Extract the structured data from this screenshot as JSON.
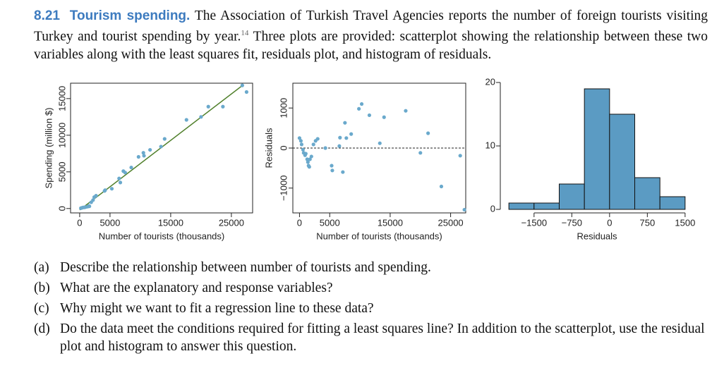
{
  "exercise": {
    "number": "8.21",
    "title": "Tourism spending.",
    "text_before": "The Association of Turkish Travel Agencies reports the number of foreign tourists visiting Turkey and tourist spending by year.",
    "footnote": "14",
    "text_after": "Three plots are provided: scatterplot showing the relationship between these two variables along with the least squares fit, residuals plot, and histogram of residuals."
  },
  "questions": [
    {
      "label": "(a)",
      "text": "Describe the relationship between number of tourists and spending."
    },
    {
      "label": "(b)",
      "text": "What are the explanatory and response variables?"
    },
    {
      "label": "(c)",
      "text": "Why might we want to fit a regression line to these data?"
    },
    {
      "label": "(d)",
      "text": "Do the data meet the conditions required for fitting a least squares line? In addition to the scatterplot, use the residual plot and histogram to answer this question."
    }
  ],
  "chart_data": [
    {
      "type": "scatter",
      "xlabel": "Number of tourists (thousands)",
      "ylabel": "Spending (million $)",
      "color": "#6aa9cc",
      "x": [
        200,
        400,
        600,
        800,
        1000,
        1300,
        1500,
        1600,
        1900,
        2200,
        2400,
        2700,
        4100,
        4200,
        5300,
        6500,
        6700,
        7200,
        7500,
        8500,
        9700,
        10500,
        10600,
        11600,
        13400,
        14000,
        17600,
        20000,
        21200,
        23600,
        26800,
        27500
      ],
      "y": [
        50,
        100,
        150,
        150,
        200,
        250,
        350,
        300,
        850,
        1150,
        1550,
        1750,
        2400,
        2500,
        2700,
        4100,
        3550,
        5100,
        4900,
        5600,
        7050,
        7600,
        7200,
        8000,
        8450,
        9500,
        12100,
        12500,
        13900,
        13900,
        16800,
        15900
      ],
      "fit_line": {
        "x": [
          0,
          27000
        ],
        "y": [
          -200,
          16900
        ],
        "color": "#4f7f2a"
      },
      "xlim": [
        -1500,
        28500
      ],
      "ylim": [
        -600,
        17100
      ],
      "xticks": [
        0,
        5000,
        15000,
        25000
      ],
      "yticks": [
        0,
        5000,
        10000,
        15000
      ]
    },
    {
      "type": "scatter",
      "xlabel": "Number of tourists (thousands)",
      "ylabel": "Residuals",
      "color": "#6aa9cc",
      "x": [
        0,
        230,
        350,
        580,
        690,
        920,
        1040,
        1270,
        1390,
        1500,
        1620,
        1730,
        1970,
        2310,
        2660,
        3010,
        4280,
        5320,
        5430,
        6590,
        6700,
        7170,
        7520,
        7750,
        8550,
        9830,
        10290,
        11560,
        13290,
        13990,
        17570,
        20000,
        21270,
        23470,
        26590,
        27280
      ],
      "y": [
        250,
        180,
        90,
        -40,
        -120,
        -180,
        -140,
        -280,
        -350,
        -440,
        -470,
        -280,
        -210,
        90,
        180,
        230,
        0,
        -440,
        -560,
        50,
        260,
        -600,
        630,
        250,
        350,
        980,
        1100,
        820,
        120,
        770,
        930,
        -120,
        370,
        -960,
        -190,
        -1540
      ],
      "reference_line": 0,
      "xlim": [
        -1100,
        27500
      ],
      "ylim": [
        -1620,
        1620
      ],
      "xticks": [
        0,
        5000,
        15000,
        25000
      ],
      "yticks": [
        {
          "value": -1000,
          "label": "−1000"
        },
        0,
        1000
      ]
    },
    {
      "type": "histogram",
      "xlabel": "Residuals",
      "color": "#5b9bc3",
      "bins": [
        -2000,
        -1500,
        -1000,
        -500,
        0,
        500,
        1000,
        1500
      ],
      "counts": [
        1,
        1,
        4,
        19,
        15,
        5,
        2
      ],
      "xlim": [
        -2100,
        1600
      ],
      "ylim": [
        0,
        20
      ],
      "xticks": [
        {
          "value": -1500,
          "label": "−1500"
        },
        {
          "value": -750,
          "label": "−750"
        },
        0,
        750,
        1500
      ],
      "yticks": [
        0,
        10,
        20
      ]
    }
  ]
}
